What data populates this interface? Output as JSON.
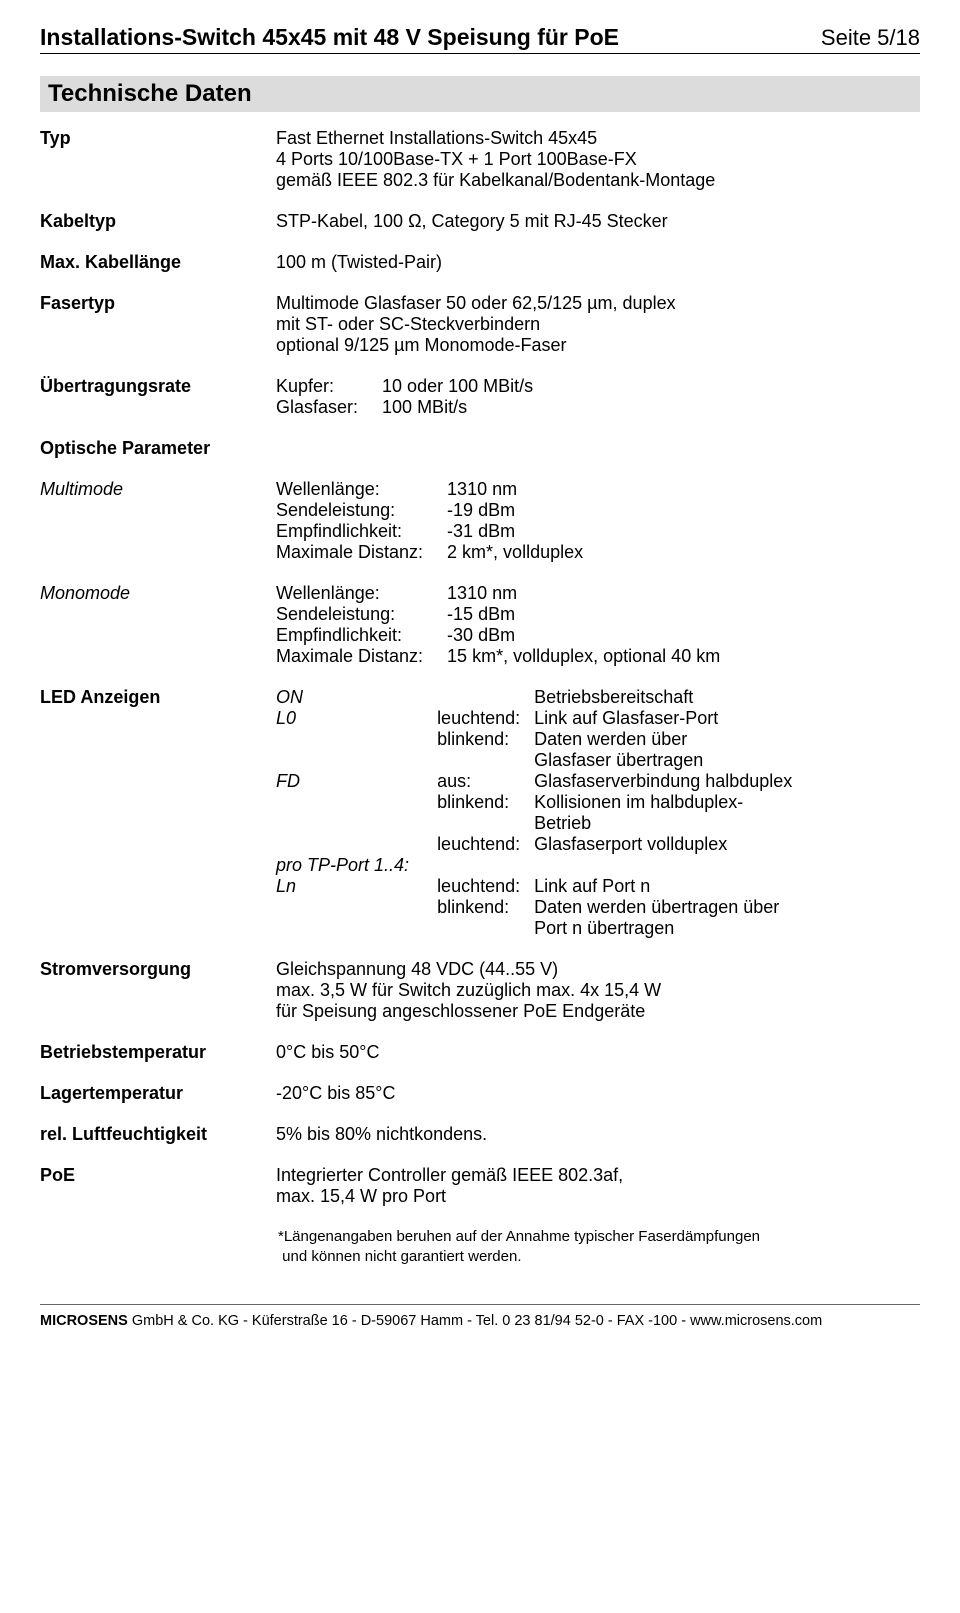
{
  "header": {
    "title": "Installations-Switch 45x45 mit 48 V Speisung für PoE",
    "page": "Seite 5/18"
  },
  "section_title": "Technische Daten",
  "rows": {
    "typ": {
      "label": "Typ",
      "line1": "Fast Ethernet Installations-Switch 45x45",
      "line2": "4 Ports 10/100Base-TX + 1 Port 100Base-FX",
      "line3": "gemäß IEEE 802.3 für Kabelkanal/Bodentank-Montage"
    },
    "kabeltyp": {
      "label": "Kabeltyp",
      "value": "STP-Kabel, 100 Ω, Category 5 mit RJ-45 Stecker"
    },
    "maxkabel": {
      "label": "Max. Kabellänge",
      "value": "100 m (Twisted-Pair)"
    },
    "fasertyp": {
      "label": "Fasertyp",
      "line1": "Multimode Glasfaser 50 oder 62,5/125 µm, duplex",
      "line2": "mit ST- oder SC-Steckverbindern",
      "line3": "optional 9/125 µm Monomode-Faser"
    },
    "rate": {
      "label": "Übertragungsrate",
      "k1": "Kupfer:",
      "v1": "10 oder 100 MBit/s",
      "k2": "Glasfaser:",
      "v2": "100 MBit/s"
    },
    "opt_params_label": "Optische Parameter",
    "multimode": {
      "label": "Multimode",
      "k1": "Wellenlänge:",
      "v1": "1310 nm",
      "k2": "Sendeleistung:",
      "v2": "-19 dBm",
      "k3": "Empfindlichkeit:",
      "v3": "-31 dBm",
      "k4": "Maximale Distanz:",
      "v4": "2 km*, vollduplex"
    },
    "monomode": {
      "label": "Monomode",
      "k1": "Wellenlänge:",
      "v1": "1310 nm",
      "k2": "Sendeleistung:",
      "v2": "-15 dBm",
      "k3": "Empfindlichkeit:",
      "v3": "-30 dBm",
      "k4": "Maximale Distanz:",
      "v4": "15 km*, vollduplex, optional 40 km"
    },
    "led": {
      "label": "LED Anzeigen",
      "a1": "ON",
      "b1": "",
      "c1": "Betriebsbereitschaft",
      "a2": "L0",
      "b2": "leuchtend:",
      "c2": "Link auf Glasfaser-Port",
      "b3": "blinkend:",
      "c3a": "Daten werden über",
      "c3b": "Glasfaser übertragen",
      "a4": "FD",
      "b4": "aus:",
      "c4": "Glasfaserverbindung halbduplex",
      "b5": "blinkend:",
      "c5a": "Kollisionen im halbduplex-",
      "c5b": "Betrieb",
      "b6": "leuchtend:",
      "c6": "Glasfaserport vollduplex",
      "a7": "pro TP-Port 1..4:",
      "a8": "Ln",
      "b8": "leuchtend:",
      "c8": "Link auf Port n",
      "b9": "blinkend:",
      "c9a": "Daten werden übertragen über",
      "c9b": "Port n übertragen"
    },
    "power": {
      "label": "Stromversorgung",
      "line1": "Gleichspannung 48 VDC (44..55 V)",
      "line2": "max. 3,5 W für Switch zuzüglich max. 4x 15,4 W",
      "line3": "für Speisung angeschlossener PoE Endgeräte"
    },
    "optemp": {
      "label": "Betriebstemperatur",
      "value": "0°C bis 50°C"
    },
    "sttemp": {
      "label": "Lagertemperatur",
      "value": "-20°C bis 85°C"
    },
    "humid": {
      "label": "rel. Luftfeuchtigkeit",
      "value": "5% bis 80% nichtkondens."
    },
    "poe": {
      "label": "PoE",
      "line1": "Integrierter Controller gemäß IEEE 802.3af,",
      "line2": "max. 15,4 W pro Port"
    }
  },
  "footnote": {
    "line1": "*Längenangaben beruhen auf der Annahme typischer Faserdämpfungen",
    "line2": " und können nicht garantiert werden."
  },
  "footer": {
    "brand": "MICROSENS",
    "rest": " GmbH & Co. KG - Küferstraße 16 - D-59067 Hamm - Tel. 0 23 81/94 52-0 - FAX -100 - www.microsens.com"
  }
}
